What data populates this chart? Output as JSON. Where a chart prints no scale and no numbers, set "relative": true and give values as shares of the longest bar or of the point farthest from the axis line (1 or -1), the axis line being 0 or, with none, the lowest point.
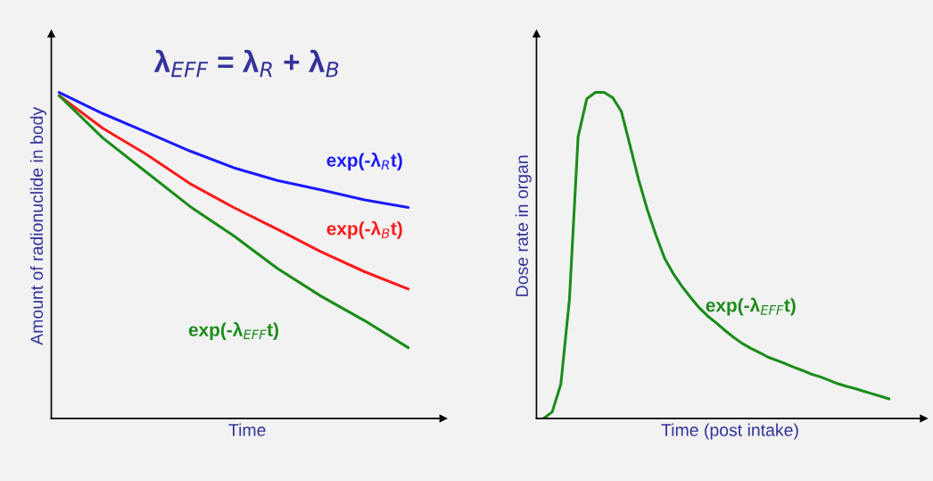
{
  "chart_data": [
    {
      "type": "line",
      "title": "λ$_{EFF}$ = λ$_{R}$ + λ$_{B}$",
      "xlabel": "Time",
      "ylabel": "Amount of radionuclide in body",
      "relative": true,
      "legend": false,
      "categories": [
        null,
        null,
        null,
        null,
        null,
        null,
        null,
        null,
        null
      ],
      "series": [
        {
          "name": "exp(-λ$_{R}$t)",
          "color": "#1a1aff",
          "values": [
            1,
            0.935,
            0.878,
            0.82,
            0.769,
            0.73,
            0.701,
            0.67,
            0.647
          ]
        },
        {
          "name": "exp(-λ$_{B}$t)",
          "color": "#ff1a1a",
          "values": [
            0.99,
            0.89,
            0.81,
            0.72,
            0.647,
            0.58,
            0.511,
            0.45,
            0.397
          ]
        },
        {
          "name": "exp(-λ$_{EFF}$t)",
          "color": "#1a8c1a",
          "values": [
            0.99,
            0.86,
            0.755,
            0.65,
            0.56,
            0.46,
            0.375,
            0.3,
            0.217
          ]
        }
      ]
    },
    {
      "type": "line",
      "xlabel": "Time (post intake)",
      "ylabel": "Dose rate in organ",
      "relative": true,
      "legend": false,
      "categories": [
        null,
        null,
        null,
        null,
        null,
        null,
        null,
        null,
        null,
        null,
        null,
        null,
        null,
        null,
        null,
        null,
        null,
        null,
        null,
        null,
        null,
        null,
        null,
        null,
        null,
        null,
        null,
        null,
        null,
        null,
        null,
        null,
        null,
        null,
        null,
        null,
        null,
        null,
        null,
        null,
        null
      ],
      "series": [
        {
          "name": "exp(-λ$_{EFF}$t)",
          "color": "#1a8c1a",
          "values": [
            0,
            0.02,
            0.105,
            0.366,
            0.864,
            0.98,
            1,
            1,
            0.984,
            0.942,
            0.838,
            0.733,
            0.641,
            0.563,
            0.492,
            0.445,
            0.406,
            0.372,
            0.34,
            0.314,
            0.293,
            0.27,
            0.249,
            0.23,
            0.215,
            0.202,
            0.188,
            0.178,
            0.168,
            0.157,
            0.147,
            0.136,
            0.128,
            0.118,
            0.107,
            0.099,
            0.092,
            0.084,
            0.076,
            0.068,
            0.06
          ]
        }
      ]
    }
  ]
}
